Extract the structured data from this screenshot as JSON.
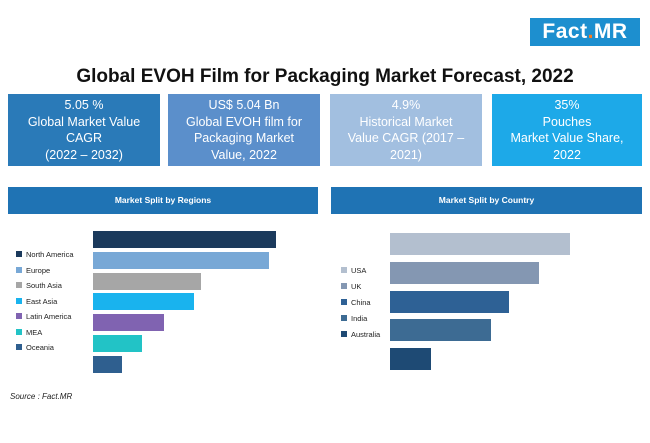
{
  "brand": {
    "part1": "Fact",
    "sep": ".",
    "part2": "MR"
  },
  "title": "Global EVOH Film for Packaging Market Forecast, 2022",
  "kpis": [
    {
      "lines": [
        "5.05 %",
        "Global Market Value",
        "CAGR",
        "(2022 – 2032)"
      ],
      "color": "#2a7ab8"
    },
    {
      "lines": [
        "US$ 5.04 Bn",
        "Global EVOH film for",
        "Packaging Market",
        "Value, 2022"
      ],
      "color": "#5b8fcb"
    },
    {
      "lines": [
        "4.9%",
        "Historical Market",
        "Value CAGR (2017 –",
        "2021)"
      ],
      "color": "#a2bfe0"
    },
    {
      "lines": [
        "35%",
        "Pouches",
        "Market Value Share,",
        "2022"
      ],
      "color": "#1da9e8"
    }
  ],
  "chart_data": [
    {
      "type": "bar",
      "orientation": "horizontal",
      "title": "Market Split by Regions",
      "categories": [
        "North America",
        "Europe",
        "South Asia",
        "East Asia",
        "Latin America",
        "MEA",
        "Oceania"
      ],
      "values": [
        100,
        96,
        59,
        55,
        39,
        27,
        16
      ],
      "colors": [
        "#1b3a5c",
        "#78a8d6",
        "#a6a6a6",
        "#19b3ee",
        "#8063b1",
        "#22c3c6",
        "#2f5f8f"
      ],
      "legend_position": "left"
    },
    {
      "type": "bar",
      "orientation": "horizontal",
      "title": "Market Split by Country",
      "categories": [
        "USA",
        "UK",
        "China",
        "India",
        "Australia"
      ],
      "values": [
        100,
        83,
        66,
        56,
        23
      ],
      "colors": [
        "#b3bfcf",
        "#8497b2",
        "#2e6195",
        "#3d6b93",
        "#1e4a74"
      ],
      "legend_position": "left"
    }
  ],
  "source": "Source : Fact.MR"
}
